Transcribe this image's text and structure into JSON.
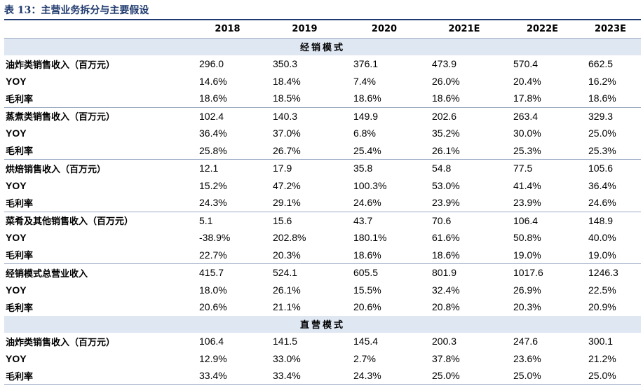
{
  "title": "表 13：主营业务拆分与主要假设",
  "columns": [
    "2018",
    "2019",
    "2020",
    "2021E",
    "2022E",
    "2023E"
  ],
  "sections": [
    {
      "name": "经销模式",
      "groups": [
        {
          "rows": [
            {
              "label": "油炸类销售收入（百万元）",
              "values": [
                "296.0",
                "350.3",
                "376.1",
                "473.9",
                "570.4",
                "662.5"
              ]
            },
            {
              "label": "YOY",
              "values": [
                "14.6%",
                "18.4%",
                "7.4%",
                "26.0%",
                "20.4%",
                "16.2%"
              ]
            },
            {
              "label": "毛利率",
              "values": [
                "18.6%",
                "18.5%",
                "18.6%",
                "18.6%",
                "17.8%",
                "18.6%"
              ]
            }
          ]
        },
        {
          "rows": [
            {
              "label": "蒸煮类销售收入（百万元）",
              "values": [
                "102.4",
                "140.3",
                "149.9",
                "202.6",
                "263.4",
                "329.3"
              ]
            },
            {
              "label": "YOY",
              "values": [
                "36.4%",
                "37.0%",
                "6.8%",
                "35.2%",
                "30.0%",
                "25.0%"
              ]
            },
            {
              "label": "毛利率",
              "values": [
                "25.8%",
                "26.7%",
                "25.4%",
                "26.1%",
                "25.3%",
                "25.3%"
              ]
            }
          ]
        },
        {
          "rows": [
            {
              "label": "烘焙销售收入（百万元）",
              "values": [
                "12.1",
                "17.9",
                "35.8",
                "54.8",
                "77.5",
                "105.6"
              ]
            },
            {
              "label": "YOY",
              "values": [
                "15.2%",
                "47.2%",
                "100.3%",
                "53.0%",
                "41.4%",
                "36.4%"
              ]
            },
            {
              "label": "毛利率",
              "values": [
                "24.3%",
                "29.1%",
                "24.6%",
                "23.9%",
                "23.9%",
                "24.6%"
              ]
            }
          ]
        },
        {
          "rows": [
            {
              "label": "菜肴及其他销售收入（百万元）",
              "values": [
                "5.1",
                "15.6",
                "43.7",
                "70.6",
                "106.4",
                "148.9"
              ]
            },
            {
              "label": "YOY",
              "values": [
                "-38.9%",
                "202.8%",
                "180.1%",
                "61.6%",
                "50.8%",
                "40.0%"
              ]
            },
            {
              "label": "毛利率",
              "values": [
                "22.7%",
                "20.3%",
                "18.6%",
                "18.6%",
                "19.0%",
                "19.0%"
              ]
            }
          ]
        },
        {
          "rows": [
            {
              "label": "经销模式总营业收入",
              "values": [
                "415.7",
                "524.1",
                "605.5",
                "801.9",
                "1017.6",
                "1246.3"
              ]
            },
            {
              "label": "YOY",
              "values": [
                "18.0%",
                "26.1%",
                "15.5%",
                "32.4%",
                "26.9%",
                "22.5%"
              ]
            },
            {
              "label": "毛利率",
              "values": [
                "20.6%",
                "21.1%",
                "20.6%",
                "20.8%",
                "20.3%",
                "20.9%"
              ]
            }
          ]
        }
      ]
    },
    {
      "name": "直营模式",
      "groups": [
        {
          "rows": [
            {
              "label": "油炸类销售收入（百万元）",
              "values": [
                "106.4",
                "141.5",
                "145.4",
                "200.3",
                "247.6",
                "300.1"
              ]
            },
            {
              "label": "YOY",
              "values": [
                "12.9%",
                "33.0%",
                "2.7%",
                "37.8%",
                "23.6%",
                "21.2%"
              ]
            },
            {
              "label": "毛利率",
              "values": [
                "33.4%",
                "33.4%",
                "24.3%",
                "25.0%",
                "25.0%",
                "25.0%"
              ]
            }
          ]
        }
      ]
    }
  ]
}
